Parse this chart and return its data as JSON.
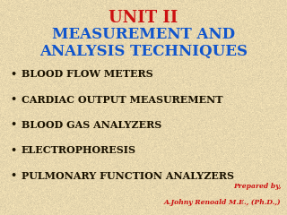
{
  "title_line1": "UNIT II",
  "title_line2": "MEASUREMENT AND",
  "title_line3": "ANALYSIS TECHNIQUES",
  "title_color": "#cc1111",
  "subtitle_color": "#1155cc",
  "bullet_items": [
    "BLOOD FLOW METERS",
    "CARDIAC OUTPUT MEASUREMENT",
    "BLOOD GAS ANALYZERS",
    "ELECTROPHORESIS",
    "PULMONARY FUNCTION ANALYZERS"
  ],
  "bullet_color": "#1a1200",
  "bullet_char": "•",
  "prepared_line1": "Prepared by,",
  "prepared_line2": "A.Johny Renoald M.E., (Ph.D.,)",
  "prepared_color": "#cc1111",
  "bg_color_light": "#f0e4c4",
  "bg_color_dark": "#d8c8a0",
  "figsize": [
    3.2,
    2.4
  ],
  "dpi": 100,
  "title1_fontsize": 13,
  "title2_fontsize": 12,
  "bullet_fontsize": 8.0,
  "prepared_fontsize": 5.5
}
